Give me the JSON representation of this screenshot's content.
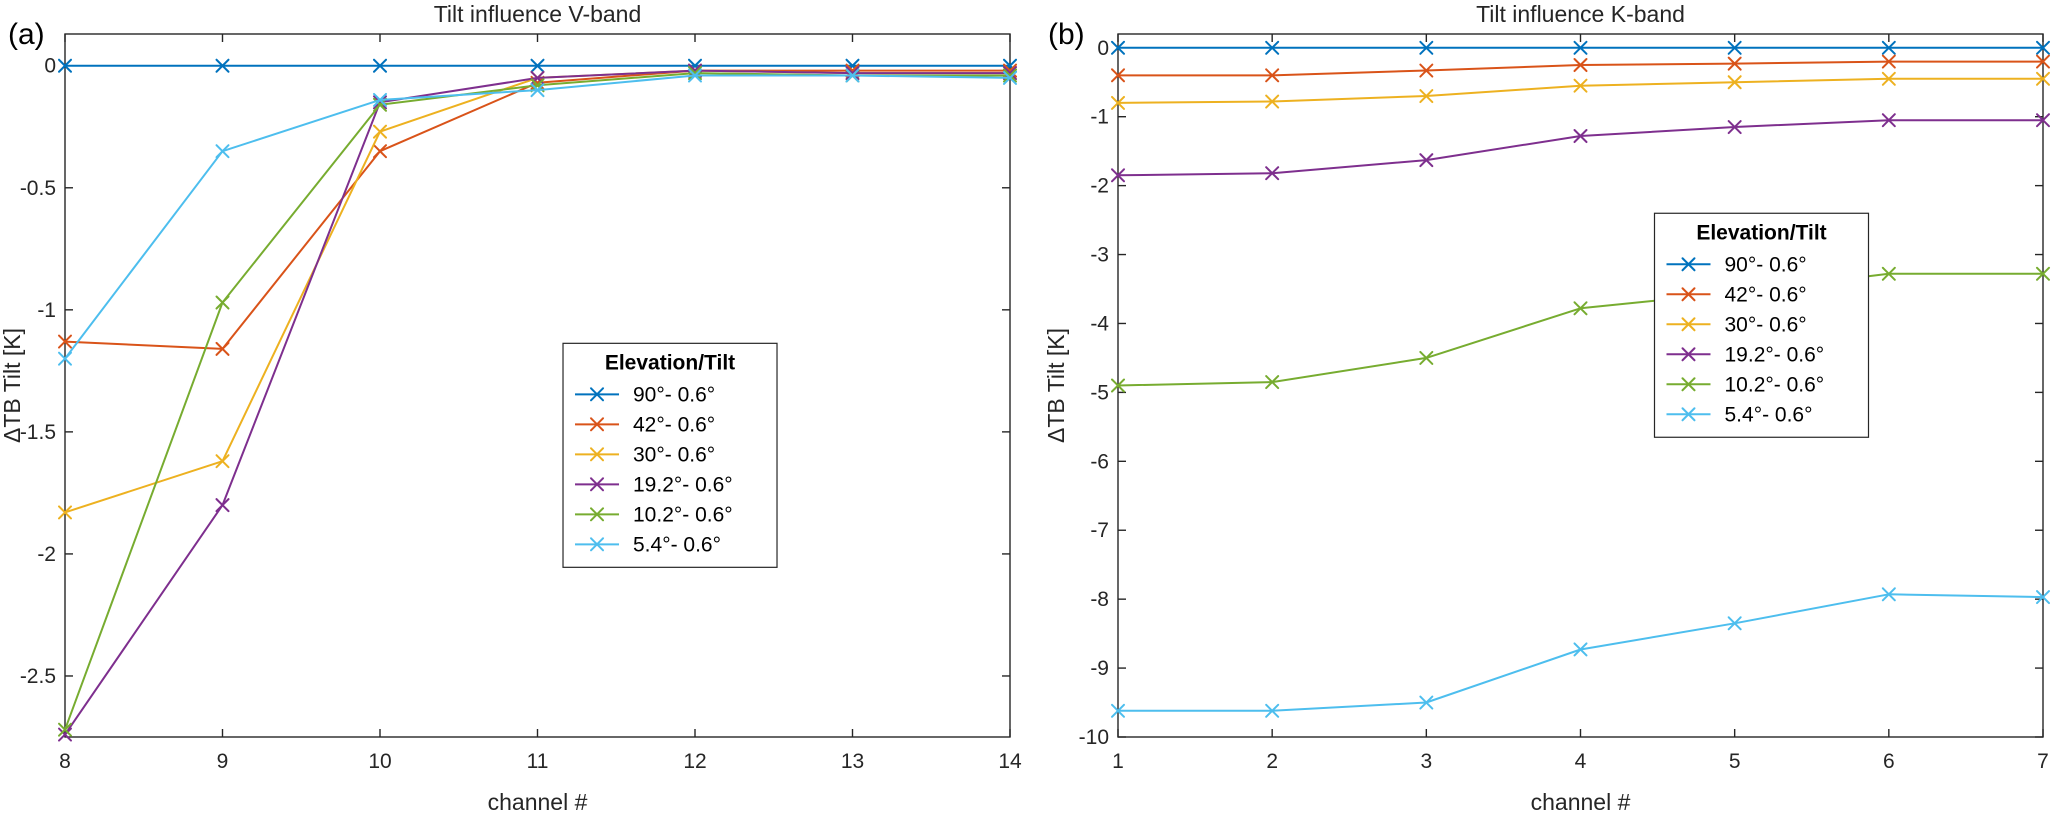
{
  "figure": {
    "panel_a_label": "(a)",
    "panel_b_label": "(b)"
  },
  "chart_data": [
    {
      "type": "line",
      "title": "Tilt influence V-band",
      "xlabel": "channel #",
      "ylabel": "ΔTB Tilt [K]",
      "x": [
        8,
        9,
        10,
        11,
        12,
        13,
        14
      ],
      "xlim": [
        8,
        14
      ],
      "ylim": [
        -2.75,
        0.13
      ],
      "xticks": [
        8,
        9,
        10,
        11,
        12,
        13,
        14
      ],
      "yticks": [
        0,
        -0.5,
        -1,
        -1.5,
        -2,
        -2.5
      ],
      "grid": false,
      "marker": "x",
      "legend_title": "Elevation/Tilt",
      "legend_position": "inside-right-lower",
      "legend_anchor": {
        "x": 0.527,
        "y": 0.44
      },
      "series": [
        {
          "name": "90°- 0.6°",
          "color": "#0072BD",
          "values": [
            0,
            0,
            0,
            0,
            0,
            0,
            0
          ]
        },
        {
          "name": "42°- 0.6°",
          "color": "#D95319",
          "values": [
            -1.13,
            -1.16,
            -0.35,
            -0.07,
            -0.02,
            -0.02,
            -0.02
          ]
        },
        {
          "name": "30°- 0.6°",
          "color": "#EDB120",
          "values": [
            -1.83,
            -1.62,
            -0.27,
            -0.05,
            -0.02,
            -0.03,
            -0.03
          ]
        },
        {
          "name": "19.2°- 0.6°",
          "color": "#7E2F8E",
          "values": [
            -2.74,
            -1.8,
            -0.15,
            -0.05,
            -0.02,
            -0.03,
            -0.03
          ]
        },
        {
          "name": "10.2°- 0.6°",
          "color": "#77AC30",
          "values": [
            -2.72,
            -0.97,
            -0.16,
            -0.08,
            -0.03,
            -0.04,
            -0.04
          ]
        },
        {
          "name": "5.4°- 0.6°",
          "color": "#4DBEEE",
          "values": [
            -1.2,
            -0.35,
            -0.14,
            -0.1,
            -0.04,
            -0.04,
            -0.05
          ]
        }
      ]
    },
    {
      "type": "line",
      "title": "Tilt influence K-band",
      "xlabel": "channel #",
      "ylabel": "ΔTB Tilt [K]",
      "x": [
        1,
        2,
        3,
        4,
        5,
        6,
        7
      ],
      "xlim": [
        1,
        7
      ],
      "ylim": [
        -10,
        0.2
      ],
      "xticks": [
        1,
        2,
        3,
        4,
        5,
        6,
        7
      ],
      "yticks": [
        0,
        -1,
        -2,
        -3,
        -4,
        -5,
        -6,
        -7,
        -8,
        -9,
        -10
      ],
      "grid": false,
      "marker": "x",
      "legend_title": "Elevation/Tilt",
      "legend_position": "inside-right-upper",
      "legend_anchor": {
        "x": 0.58,
        "y": 0.255
      },
      "series": [
        {
          "name": "90°- 0.6°",
          "color": "#0072BD",
          "values": [
            0,
            0,
            0,
            0,
            0,
            0,
            0
          ]
        },
        {
          "name": "42°- 0.6°",
          "color": "#D95319",
          "values": [
            -0.4,
            -0.4,
            -0.33,
            -0.25,
            -0.23,
            -0.2,
            -0.2
          ]
        },
        {
          "name": "30°- 0.6°",
          "color": "#EDB120",
          "values": [
            -0.8,
            -0.78,
            -0.7,
            -0.55,
            -0.5,
            -0.45,
            -0.45
          ]
        },
        {
          "name": "19.2°- 0.6°",
          "color": "#7E2F8E",
          "values": [
            -1.85,
            -1.82,
            -1.63,
            -1.28,
            -1.15,
            -1.05,
            -1.05
          ]
        },
        {
          "name": "10.2°- 0.6°",
          "color": "#77AC30",
          "values": [
            -4.9,
            -4.85,
            -4.5,
            -3.78,
            -3.55,
            -3.28,
            -3.28
          ]
        },
        {
          "name": "5.4°- 0.6°",
          "color": "#4DBEEE",
          "values": [
            -9.62,
            -9.62,
            -9.5,
            -8.73,
            -8.35,
            -7.93,
            -7.97
          ]
        }
      ]
    }
  ],
  "style": {
    "axis_color": "#262626",
    "background": "#ffffff"
  }
}
